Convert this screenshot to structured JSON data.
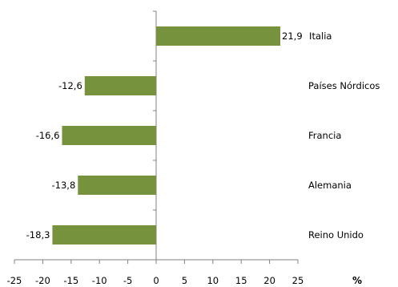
{
  "chart_data": {
    "type": "bar",
    "orientation": "horizontal",
    "categories": [
      "Italia",
      "Países Nórdicos",
      "Francia",
      "Alemania",
      "Reino Unido"
    ],
    "values": [
      21.9,
      -12.6,
      -16.6,
      -13.8,
      -18.3
    ],
    "value_labels": [
      "21,9",
      "-12,6",
      "-16,6",
      "-13,8",
      "-18,3"
    ],
    "xlim": [
      -25,
      25
    ],
    "x_ticks": [
      "-25",
      "-20",
      "-15",
      "-10",
      "-5",
      "0",
      "5",
      "10",
      "15",
      "20",
      "25"
    ],
    "xlabel": "%",
    "bar_color": "#76923c",
    "grid": false,
    "legend": "none"
  }
}
